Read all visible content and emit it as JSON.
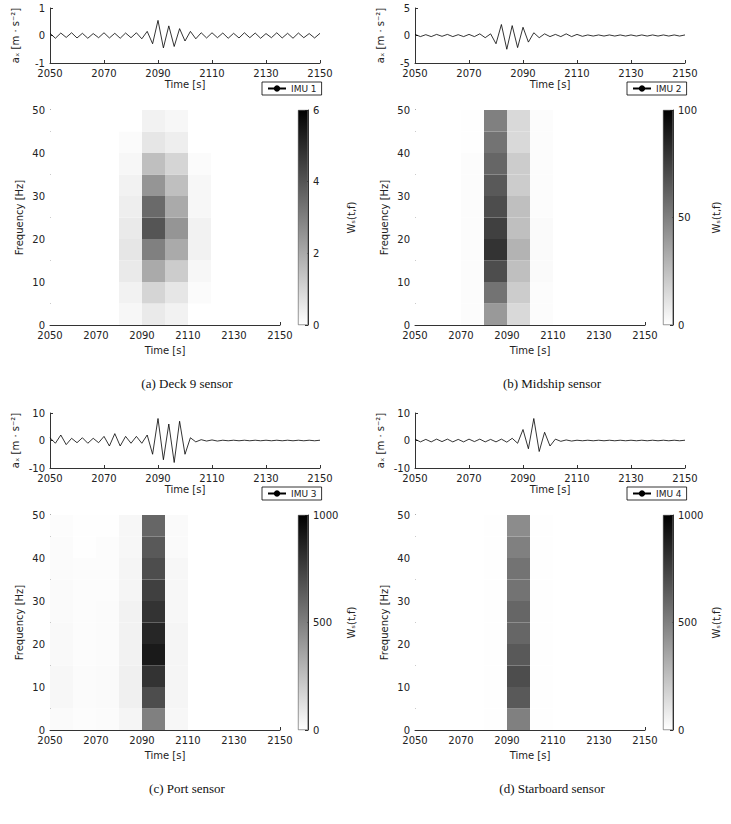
{
  "chart_data": [
    {
      "type": "line",
      "x_label": "Time [s]",
      "y_label": "aₓ [m · s⁻²]",
      "xlim": [
        2050,
        2150
      ],
      "xticks": [
        2050,
        2070,
        2090,
        2110,
        2130,
        2150
      ],
      "ylim": [
        -1,
        1
      ],
      "yticks": [
        -1,
        0,
        1
      ],
      "grid": false,
      "legend": "lower right",
      "x": [
        2050,
        2052,
        2054,
        2056,
        2058,
        2060,
        2062,
        2064,
        2066,
        2068,
        2070,
        2072,
        2074,
        2076,
        2078,
        2080,
        2082,
        2084,
        2086,
        2088,
        2090,
        2092,
        2094,
        2096,
        2098,
        2100,
        2102,
        2104,
        2106,
        2108,
        2110,
        2112,
        2114,
        2116,
        2118,
        2120,
        2122,
        2124,
        2126,
        2128,
        2130,
        2132,
        2134,
        2136,
        2138,
        2140,
        2142,
        2144,
        2146,
        2148,
        2150
      ],
      "series": [
        {
          "name": "IMU 1",
          "color": "#000000",
          "values": [
            0.08,
            -0.1,
            0.09,
            -0.07,
            0.1,
            -0.09,
            0.08,
            -0.1,
            0.07,
            -0.08,
            0.1,
            -0.09,
            0.08,
            -0.1,
            0.09,
            -0.08,
            0.1,
            -0.12,
            0.15,
            -0.3,
            0.55,
            -0.45,
            0.35,
            -0.4,
            0.25,
            -0.2,
            0.15,
            -0.12,
            0.1,
            -0.09,
            0.1,
            -0.08,
            0.09,
            -0.1,
            0.08,
            -0.09,
            0.1,
            -0.08,
            0.09,
            -0.1,
            0.07,
            -0.08,
            0.1,
            -0.09,
            0.08,
            -0.1,
            0.09,
            -0.08,
            0.07,
            -0.09,
            0.08
          ]
        }
      ]
    },
    {
      "type": "heatmap",
      "title": "(a) Deck 9 sensor",
      "x_label": "Time [s]",
      "y_label": "Frequency [Hz]",
      "xlim": [
        2050,
        2150
      ],
      "xticks": [
        2050,
        2070,
        2090,
        2110,
        2130,
        2150
      ],
      "ylim": [
        0,
        50
      ],
      "yticks": [
        0,
        10,
        20,
        30,
        40,
        50
      ],
      "x_bins": [
        2050,
        2060,
        2070,
        2080,
        2090,
        2100,
        2110,
        2120,
        2130,
        2140,
        2150
      ],
      "y_bins": [
        0,
        5,
        10,
        15,
        20,
        25,
        30,
        35,
        40,
        45,
        50
      ],
      "cells": [
        [
          0,
          0,
          0,
          0.2,
          0.5,
          0.3,
          0,
          0,
          0,
          0
        ],
        [
          0,
          0,
          0,
          0.3,
          1,
          0.6,
          0.1,
          0,
          0,
          0
        ],
        [
          0,
          0,
          0,
          0.5,
          2,
          1.2,
          0.2,
          0,
          0,
          0
        ],
        [
          0,
          0,
          0,
          0.6,
          3,
          2,
          0.3,
          0,
          0,
          0
        ],
        [
          0,
          0,
          0,
          0.5,
          4,
          2.5,
          0.3,
          0,
          0,
          0
        ],
        [
          0,
          0,
          0,
          0.4,
          3.5,
          2,
          0.2,
          0,
          0,
          0
        ],
        [
          0,
          0,
          0,
          0.3,
          2.5,
          1.5,
          0.2,
          0,
          0,
          0
        ],
        [
          0,
          0,
          0,
          0.2,
          1.5,
          1,
          0.1,
          0,
          0,
          0
        ],
        [
          0,
          0,
          0,
          0.1,
          0.6,
          0.4,
          0,
          0,
          0,
          0
        ],
        [
          0,
          0,
          0,
          0,
          0.3,
          0.2,
          0,
          0,
          0,
          0
        ]
      ],
      "colorbar_label": "Wₛ(t,f)",
      "colorbar_lim": [
        0,
        6
      ],
      "colorbar_ticks": [
        0,
        2,
        4,
        6
      ]
    },
    {
      "type": "line",
      "x_label": "Time [s]",
      "y_label": "aₓ [m · s⁻²]",
      "xlim": [
        2050,
        2150
      ],
      "xticks": [
        2050,
        2070,
        2090,
        2110,
        2130,
        2150
      ],
      "ylim": [
        -5,
        5
      ],
      "yticks": [
        -5,
        0,
        5
      ],
      "grid": false,
      "legend": "lower right",
      "x": [
        2050,
        2052,
        2054,
        2056,
        2058,
        2060,
        2062,
        2064,
        2066,
        2068,
        2070,
        2072,
        2074,
        2076,
        2078,
        2080,
        2082,
        2084,
        2086,
        2088,
        2090,
        2092,
        2094,
        2096,
        2098,
        2100,
        2102,
        2104,
        2106,
        2108,
        2110,
        2112,
        2114,
        2116,
        2118,
        2120,
        2122,
        2124,
        2126,
        2128,
        2130,
        2132,
        2134,
        2136,
        2138,
        2140,
        2142,
        2144,
        2146,
        2148,
        2150
      ],
      "series": [
        {
          "name": "IMU 2",
          "color": "#000000",
          "values": [
            0.2,
            -0.2,
            0.15,
            -0.2,
            0.2,
            -0.15,
            0.2,
            -0.2,
            0.15,
            -0.2,
            0.2,
            -0.2,
            0.3,
            -0.4,
            0.3,
            -1.5,
            2,
            -2.5,
            1.8,
            -2.2,
            1.5,
            -1.2,
            0.5,
            -0.4,
            0.3,
            -0.2,
            0.2,
            -0.2,
            0.3,
            -0.2,
            0.2,
            -0.15,
            0.1,
            -0.1,
            0.1,
            -0.1,
            0.1,
            -0.1,
            0.1,
            -0.1,
            0.1,
            -0.1,
            0.1,
            -0.1,
            0.1,
            -0.1,
            0.1,
            -0.1,
            0.1,
            -0.1,
            0.1
          ]
        }
      ]
    },
    {
      "type": "heatmap",
      "title": "(b) Midship sensor",
      "x_label": "Time [s]",
      "y_label": "Frequency [Hz]",
      "xlim": [
        2050,
        2150
      ],
      "xticks": [
        2050,
        2070,
        2090,
        2110,
        2130,
        2150
      ],
      "ylim": [
        0,
        50
      ],
      "yticks": [
        0,
        10,
        20,
        30,
        40,
        50
      ],
      "x_bins": [
        2050,
        2060,
        2070,
        2080,
        2090,
        2100,
        2110,
        2120,
        2130,
        2140,
        2150
      ],
      "y_bins": [
        0,
        5,
        10,
        15,
        20,
        25,
        30,
        35,
        40,
        45,
        50
      ],
      "cells": [
        [
          0,
          0,
          1,
          40,
          15,
          1,
          0,
          0,
          0,
          0
        ],
        [
          0,
          0,
          1,
          55,
          20,
          1,
          0,
          0,
          0,
          0
        ],
        [
          0,
          0,
          1,
          70,
          25,
          2,
          0,
          0,
          0,
          0
        ],
        [
          0,
          0,
          1,
          80,
          30,
          2,
          0,
          0,
          0,
          0
        ],
        [
          0,
          0,
          1,
          75,
          25,
          2,
          0,
          0,
          0,
          0
        ],
        [
          0,
          0,
          1,
          70,
          25,
          1,
          0,
          0,
          0,
          0
        ],
        [
          0,
          0,
          1,
          65,
          20,
          1,
          0,
          0,
          0,
          0
        ],
        [
          0,
          0,
          1,
          60,
          20,
          1,
          0,
          0,
          0,
          0
        ],
        [
          0,
          0,
          0.5,
          55,
          15,
          1,
          0,
          0,
          0,
          0
        ],
        [
          0,
          0,
          0.5,
          50,
          15,
          1,
          0,
          0,
          0,
          0
        ]
      ],
      "colorbar_label": "Wₛ(t,f)",
      "colorbar_lim": [
        0,
        100
      ],
      "colorbar_ticks": [
        0,
        50,
        100
      ]
    },
    {
      "type": "line",
      "x_label": "Time [s]",
      "y_label": "aₓ [m · s⁻²]",
      "xlim": [
        2050,
        2150
      ],
      "xticks": [
        2050,
        2070,
        2090,
        2110,
        2130,
        2150
      ],
      "ylim": [
        -10,
        10
      ],
      "yticks": [
        -10,
        0,
        10
      ],
      "grid": false,
      "legend": "lower right",
      "x": [
        2050,
        2052,
        2054,
        2056,
        2058,
        2060,
        2062,
        2064,
        2066,
        2068,
        2070,
        2072,
        2074,
        2076,
        2078,
        2080,
        2082,
        2084,
        2086,
        2088,
        2090,
        2092,
        2094,
        2096,
        2098,
        2100,
        2102,
        2104,
        2106,
        2108,
        2110,
        2112,
        2114,
        2116,
        2118,
        2120,
        2122,
        2124,
        2126,
        2128,
        2130,
        2132,
        2134,
        2136,
        2138,
        2140,
        2142,
        2144,
        2146,
        2148,
        2150
      ],
      "series": [
        {
          "name": "IMU 3",
          "color": "#000000",
          "values": [
            1,
            -1,
            2,
            -1.5,
            0.8,
            -0.8,
            1,
            -1,
            0.8,
            -0.8,
            1.5,
            -2,
            2.5,
            -2,
            1.5,
            -1,
            1.5,
            -1,
            2,
            -5,
            8,
            -7,
            6,
            -8,
            7,
            -5,
            1,
            -0.5,
            0.3,
            -0.2,
            0.2,
            -0.2,
            0.1,
            -0.1,
            0.1,
            -0.1,
            0.1,
            -0.1,
            0.1,
            -0.1,
            0.1,
            -0.1,
            0.1,
            -0.1,
            0.1,
            -0.1,
            0.1,
            -0.1,
            0.1,
            -0.1,
            0.1
          ]
        }
      ]
    },
    {
      "type": "heatmap",
      "title": "(c) Port sensor",
      "x_label": "Time [s]",
      "y_label": "Frequency [Hz]",
      "xlim": [
        2050,
        2150
      ],
      "xticks": [
        2050,
        2070,
        2090,
        2110,
        2130,
        2150
      ],
      "ylim": [
        0,
        50
      ],
      "yticks": [
        0,
        10,
        20,
        30,
        40,
        50
      ],
      "x_bins": [
        2050,
        2060,
        2070,
        2080,
        2090,
        2100,
        2110,
        2120,
        2130,
        2140,
        2150
      ],
      "y_bins": [
        0,
        5,
        10,
        15,
        20,
        25,
        30,
        35,
        40,
        45,
        50
      ],
      "cells": [
        [
          20,
          10,
          15,
          40,
          500,
          30,
          0,
          0,
          0,
          0
        ],
        [
          30,
          15,
          20,
          60,
          700,
          40,
          0,
          0,
          0,
          0
        ],
        [
          30,
          15,
          20,
          60,
          800,
          40,
          0,
          0,
          0,
          0
        ],
        [
          25,
          10,
          15,
          50,
          900,
          40,
          0,
          0,
          0,
          0
        ],
        [
          25,
          10,
          15,
          50,
          850,
          40,
          0,
          0,
          0,
          0
        ],
        [
          20,
          10,
          15,
          50,
          800,
          30,
          0,
          0,
          0,
          0
        ],
        [
          20,
          10,
          10,
          40,
          750,
          30,
          0,
          0,
          0,
          0
        ],
        [
          15,
          10,
          10,
          40,
          700,
          30,
          0,
          0,
          0,
          0
        ],
        [
          15,
          5,
          10,
          30,
          650,
          20,
          0,
          0,
          0,
          0
        ],
        [
          10,
          5,
          5,
          30,
          600,
          20,
          0,
          0,
          0,
          0
        ]
      ],
      "colorbar_label": "Wₛ(t,f)",
      "colorbar_lim": [
        0,
        1000
      ],
      "colorbar_ticks": [
        0,
        500,
        1000
      ]
    },
    {
      "type": "line",
      "x_label": "Time [s]",
      "y_label": "aₓ [m · s⁻²]",
      "xlim": [
        2050,
        2150
      ],
      "xticks": [
        2050,
        2070,
        2090,
        2110,
        2130,
        2150
      ],
      "ylim": [
        -10,
        10
      ],
      "yticks": [
        -10,
        0,
        10
      ],
      "grid": false,
      "legend": "lower right",
      "x": [
        2050,
        2052,
        2054,
        2056,
        2058,
        2060,
        2062,
        2064,
        2066,
        2068,
        2070,
        2072,
        2074,
        2076,
        2078,
        2080,
        2082,
        2084,
        2086,
        2088,
        2090,
        2092,
        2094,
        2096,
        2098,
        2100,
        2102,
        2104,
        2106,
        2108,
        2110,
        2112,
        2114,
        2116,
        2118,
        2120,
        2122,
        2124,
        2126,
        2128,
        2130,
        2132,
        2134,
        2136,
        2138,
        2140,
        2142,
        2144,
        2146,
        2148,
        2150
      ],
      "series": [
        {
          "name": "IMU 4",
          "color": "#000000",
          "values": [
            0.5,
            -0.5,
            0.4,
            -0.5,
            0.5,
            -0.4,
            0.5,
            -0.5,
            0.4,
            -0.5,
            0.5,
            -0.4,
            0.5,
            -0.5,
            0.4,
            -0.5,
            0.5,
            -0.6,
            0.8,
            -1,
            4,
            -3,
            8,
            -4,
            3,
            -2,
            0.5,
            -0.3,
            0.2,
            -0.2,
            0.1,
            -0.1,
            0.1,
            -0.1,
            0.1,
            -0.1,
            0.1,
            -0.1,
            0.1,
            -0.1,
            0.1,
            -0.1,
            0.1,
            -0.1,
            0.1,
            -0.1,
            0.1,
            -0.1,
            0.1,
            -0.1,
            0.1
          ]
        }
      ]
    },
    {
      "type": "heatmap",
      "title": "(d) Starboard sensor",
      "x_label": "Time [s]",
      "y_label": "Frequency [Hz]",
      "xlim": [
        2050,
        2150
      ],
      "xticks": [
        2050,
        2070,
        2090,
        2110,
        2130,
        2150
      ],
      "ylim": [
        0,
        50
      ],
      "yticks": [
        0,
        10,
        20,
        30,
        40,
        50
      ],
      "x_bins": [
        2050,
        2060,
        2070,
        2080,
        2090,
        2100,
        2110,
        2120,
        2130,
        2140,
        2150
      ],
      "y_bins": [
        0,
        5,
        10,
        15,
        20,
        25,
        30,
        35,
        40,
        45,
        50
      ],
      "cells": [
        [
          0,
          0,
          0,
          5,
          500,
          5,
          0,
          0,
          0,
          0
        ],
        [
          0,
          0,
          0,
          5,
          650,
          5,
          0,
          0,
          0,
          0
        ],
        [
          0,
          0,
          0,
          5,
          700,
          5,
          0,
          0,
          0,
          0
        ],
        [
          0,
          0,
          0,
          5,
          650,
          5,
          0,
          0,
          0,
          0
        ],
        [
          0,
          0,
          0,
          5,
          600,
          5,
          0,
          0,
          0,
          0
        ],
        [
          0,
          0,
          0,
          5,
          600,
          5,
          0,
          0,
          0,
          0
        ],
        [
          0,
          0,
          0,
          5,
          550,
          5,
          0,
          0,
          0,
          0
        ],
        [
          0,
          0,
          0,
          5,
          550,
          5,
          0,
          0,
          0,
          0
        ],
        [
          0,
          0,
          0,
          5,
          500,
          5,
          0,
          0,
          0,
          0
        ],
        [
          0,
          0,
          0,
          5,
          450,
          5,
          0,
          0,
          0,
          0
        ]
      ],
      "colorbar_label": "Wₛ(t,f)",
      "colorbar_lim": [
        0,
        1000
      ],
      "colorbar_ticks": [
        0,
        500,
        1000
      ]
    }
  ]
}
